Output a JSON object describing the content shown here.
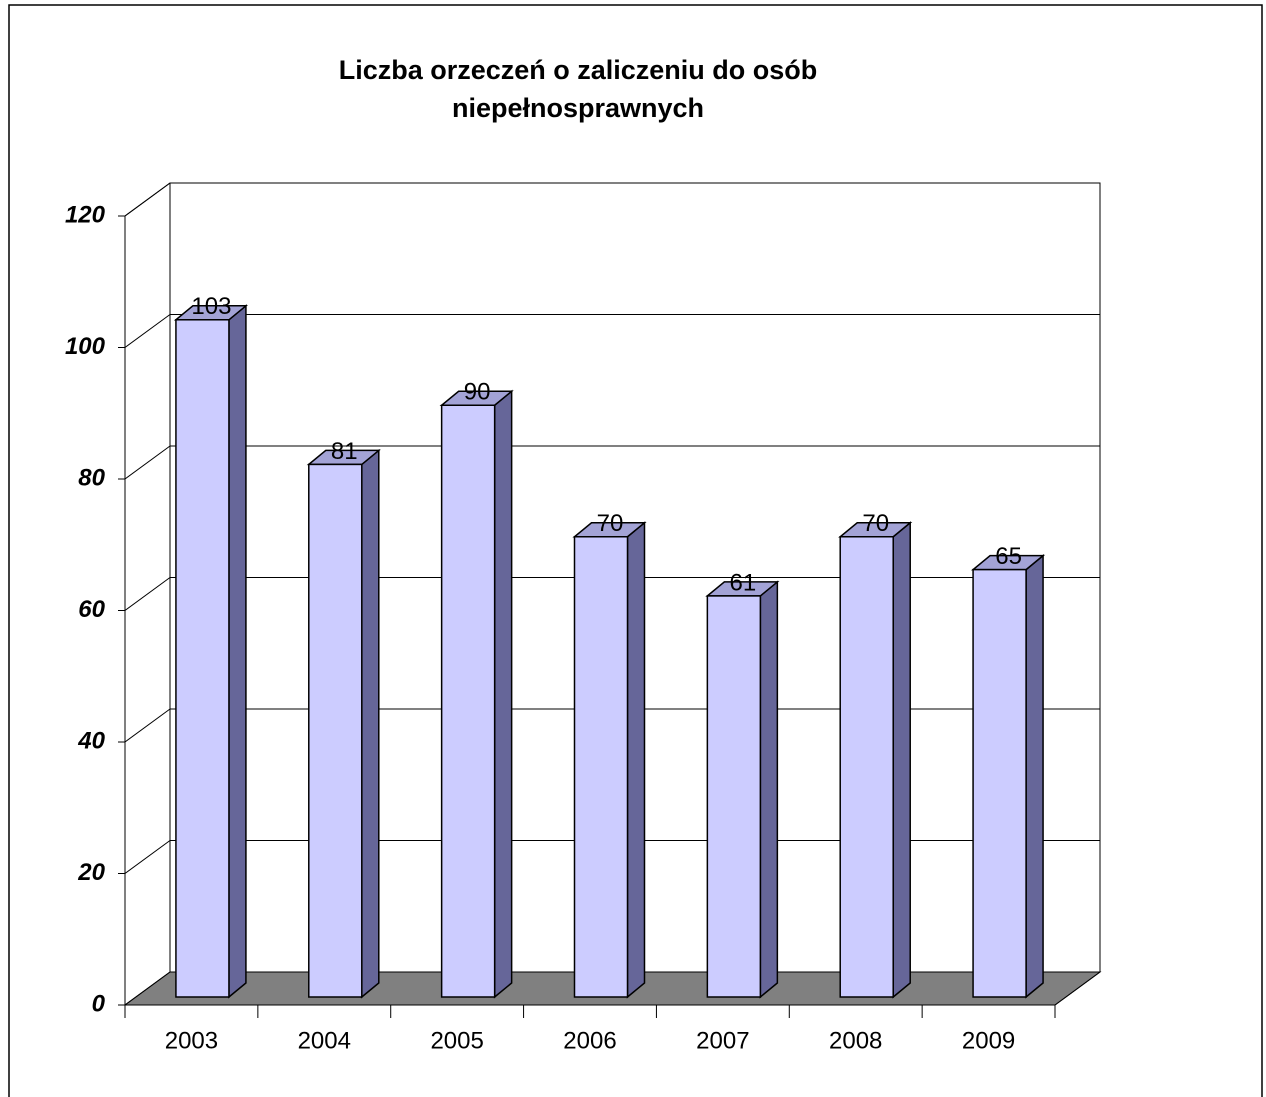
{
  "chart_data": {
    "type": "bar",
    "title": [
      "Liczba orzeczeń o zaliczeniu do osób",
      "niepełnosprawnych"
    ],
    "categories": [
      "2003",
      "2004",
      "2005",
      "2006",
      "2007",
      "2008",
      "2009"
    ],
    "values": [
      103,
      81,
      90,
      70,
      61,
      70,
      65
    ],
    "color": "#ccccff",
    "ylim": [
      0,
      120
    ],
    "yticks": [
      0,
      20,
      40,
      60,
      80,
      100,
      120
    ],
    "grid": true
  }
}
